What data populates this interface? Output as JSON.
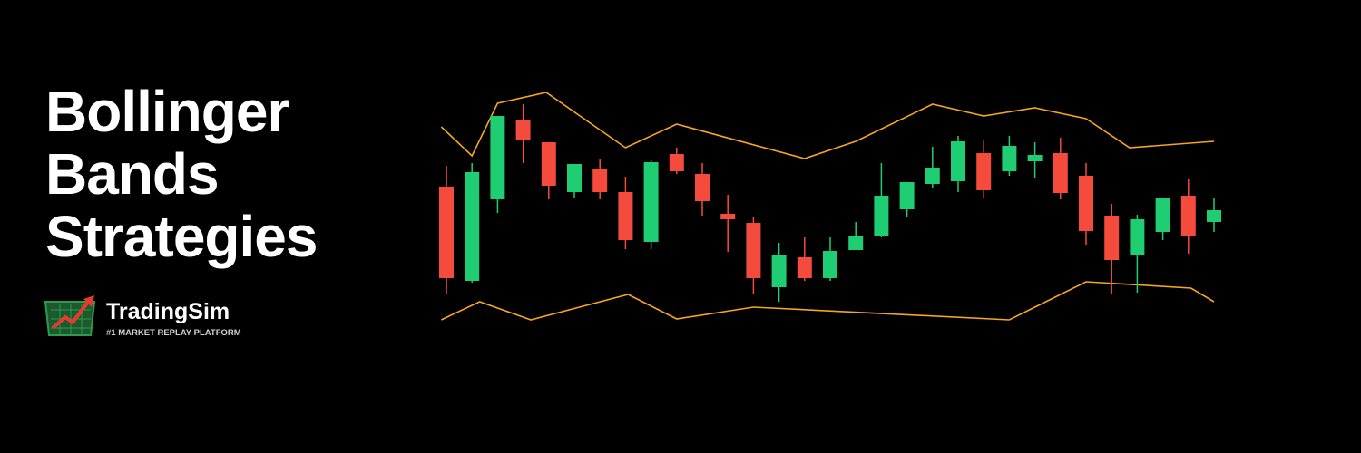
{
  "banner": {
    "title_lines": [
      "Bollinger",
      "Bands",
      "Strategies"
    ]
  },
  "logo": {
    "name": "TradingSim",
    "tagline": "#1 MARKET REPLAY PLATFORM"
  },
  "chart_data": {
    "type": "candlestick",
    "up_color": "#1fce73",
    "down_color": "#f44b3c",
    "open": [
      294,
      190,
      280,
      367,
      343,
      288,
      314,
      288,
      233,
      330,
      308,
      264,
      254,
      183,
      216,
      193,
      224,
      240,
      269,
      297,
      300,
      331,
      311,
      322,
      331,
      306,
      262,
      218,
      244,
      284,
      255
    ],
    "high": [
      317,
      320,
      372,
      385,
      343,
      319,
      324,
      305,
      323,
      337,
      320,
      285,
      260,
      232,
      238,
      238,
      255,
      320,
      299,
      338,
      350,
      345,
      350,
      343,
      348,
      320,
      275,
      263,
      282,
      302,
      282
    ],
    "low": [
      175,
      188,
      265,
      320,
      280,
      282,
      280,
      225,
      225,
      308,
      262,
      222,
      175,
      167,
      190,
      190,
      224,
      238,
      260,
      292,
      288,
      282,
      306,
      304,
      280,
      230,
      175,
      177,
      235,
      220,
      244
    ],
    "close": [
      193,
      310,
      372,
      345,
      295,
      319,
      288,
      235,
      321,
      311,
      278,
      258,
      193,
      219,
      193,
      223,
      239,
      284,
      299,
      315,
      344,
      290,
      339,
      329,
      287,
      245,
      213,
      258,
      282,
      240,
      268
    ],
    "bands": [
      {
        "color": "#f5a51e",
        "x": [
          -0.2,
          1,
          2,
          3.9,
          7,
          9,
          14,
          16,
          19,
          21,
          23,
          25,
          26.7,
          30
        ],
        "values": [
          360,
          328,
          386,
          398,
          337,
          363,
          325,
          344,
          385,
          372,
          381,
          369,
          337,
          344
        ]
      },
      {
        "color": "#f5a51e",
        "x": [
          -0.2,
          1.3,
          3.3,
          7.1,
          9,
          12,
          22,
          25,
          29.1,
          30
        ],
        "values": [
          147,
          167,
          147,
          175,
          148,
          161,
          147,
          189,
          182,
          167
        ]
      }
    ]
  }
}
